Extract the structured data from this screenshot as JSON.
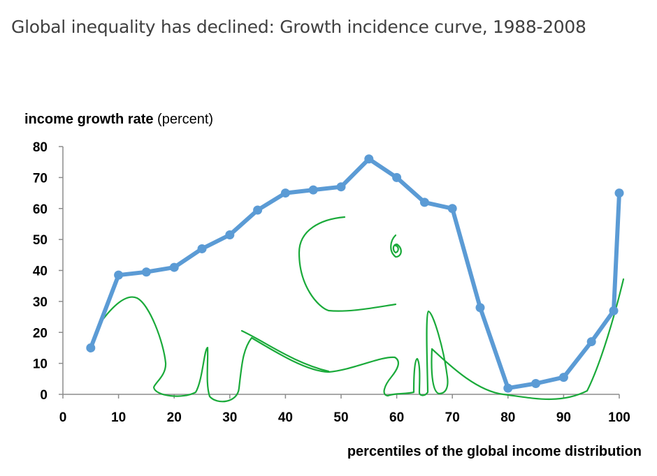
{
  "page": {
    "title": "Global inequality has declined: Growth incidence curve, 1988-2008"
  },
  "chart_data": {
    "type": "line",
    "title": "Global inequality has declined: Growth incidence curve, 1988-2008",
    "ylabel_bold": "income growth rate",
    "ylabel_rest": "(percent)",
    "xlabel": "percentiles of the global income distribution",
    "xlim": [
      0,
      100
    ],
    "ylim": [
      0,
      80
    ],
    "x_ticks": [
      0,
      10,
      20,
      30,
      40,
      50,
      60,
      70,
      80,
      90,
      100
    ],
    "y_ticks": [
      0,
      10,
      20,
      30,
      40,
      50,
      60,
      70,
      80
    ],
    "series": [
      {
        "name": "growth incidence",
        "color": "#5B9BD5",
        "x": [
          5,
          10,
          15,
          20,
          25,
          30,
          35,
          40,
          45,
          50,
          55,
          60,
          65,
          70,
          75,
          80,
          85,
          90,
          95,
          99,
          100
        ],
        "y": [
          15,
          38.5,
          39.5,
          41,
          47,
          51.5,
          59.5,
          65,
          66,
          67,
          76,
          70,
          62,
          60,
          28,
          2,
          3.5,
          5.5,
          17,
          27,
          65
        ]
      }
    ],
    "annotation": {
      "name": "hand-drawn elephant outline",
      "color": "#1AAA3A"
    }
  }
}
